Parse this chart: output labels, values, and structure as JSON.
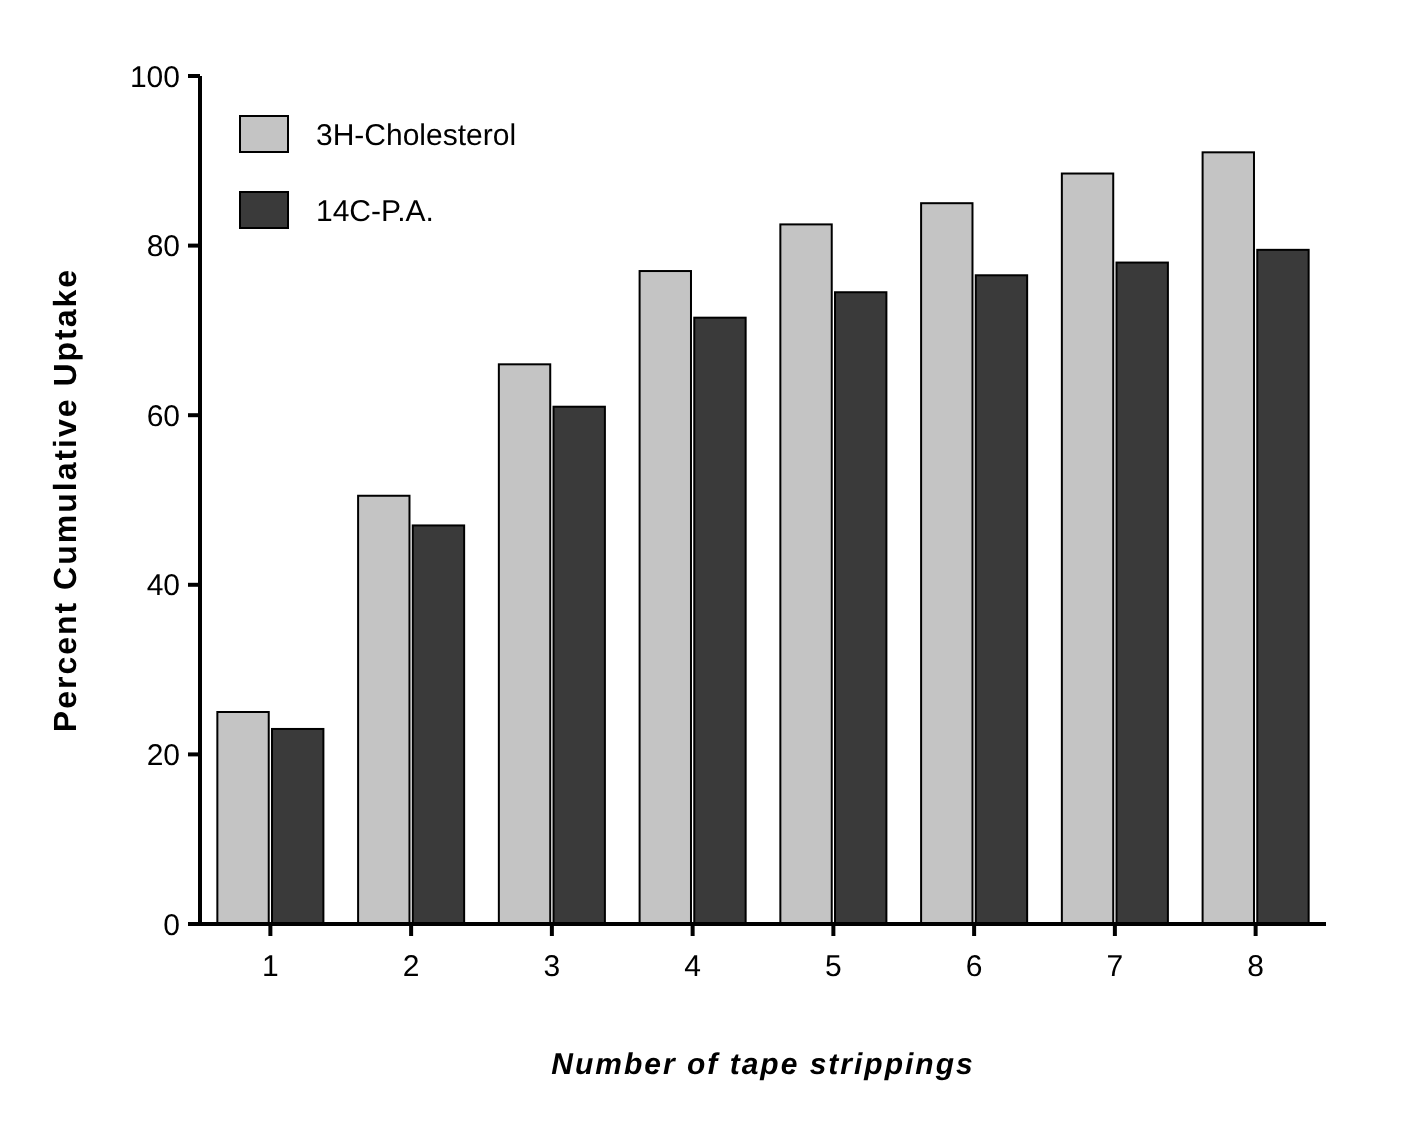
{
  "chart_data": {
    "type": "bar",
    "xlabel": "Number of tape strippings",
    "ylabel": "Percent Cumulative Uptake",
    "categories": [
      "1",
      "2",
      "3",
      "4",
      "5",
      "6",
      "7",
      "8"
    ],
    "series": [
      {
        "name": "3H-Cholesterol",
        "color": "#c4c4c4",
        "values": [
          25,
          50.5,
          66,
          77,
          82.5,
          85,
          88.5,
          91
        ]
      },
      {
        "name": "14C-P.A.",
        "color": "#3a3a3a",
        "values": [
          23,
          47,
          61,
          71.5,
          74.5,
          76.5,
          78,
          79.5
        ]
      }
    ],
    "ylim": [
      0,
      100
    ],
    "yticks": [
      0,
      20,
      40,
      60,
      80,
      100
    ],
    "legend": "top left",
    "grid": false
  }
}
